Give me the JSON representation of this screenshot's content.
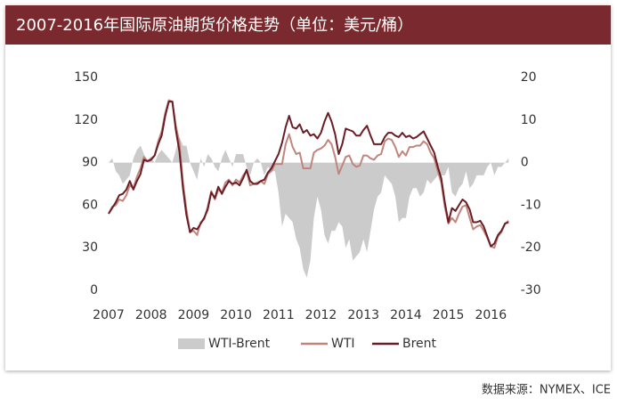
{
  "chart_data": {
    "type": "line",
    "title": "2007-2016年国际原油期货价格走势（单位：美元/桶）",
    "source": "数据来源：NYMEX、ICE",
    "x": [
      2007,
      2007.083,
      2007.167,
      2007.25,
      2007.333,
      2007.417,
      2007.5,
      2007.583,
      2007.667,
      2007.75,
      2007.833,
      2007.917,
      2008,
      2008.083,
      2008.167,
      2008.25,
      2008.333,
      2008.417,
      2008.5,
      2008.583,
      2008.667,
      2008.75,
      2008.833,
      2008.917,
      2009,
      2009.083,
      2009.167,
      2009.25,
      2009.333,
      2009.417,
      2009.5,
      2009.583,
      2009.667,
      2009.75,
      2009.833,
      2009.917,
      2010,
      2010.083,
      2010.167,
      2010.25,
      2010.333,
      2010.417,
      2010.5,
      2010.583,
      2010.667,
      2010.75,
      2010.833,
      2010.917,
      2011,
      2011.083,
      2011.167,
      2011.25,
      2011.333,
      2011.417,
      2011.5,
      2011.583,
      2011.667,
      2011.75,
      2011.833,
      2011.917,
      2012,
      2012.083,
      2012.167,
      2012.25,
      2012.333,
      2012.417,
      2012.5,
      2012.583,
      2012.667,
      2012.75,
      2012.833,
      2012.917,
      2013,
      2013.083,
      2013.167,
      2013.25,
      2013.333,
      2013.417,
      2013.5,
      2013.583,
      2013.667,
      2013.75,
      2013.833,
      2013.917,
      2014,
      2014.083,
      2014.167,
      2014.25,
      2014.333,
      2014.417,
      2014.5,
      2014.583,
      2014.667,
      2014.75,
      2014.833,
      2014.917,
      2015,
      2015.083,
      2015.167,
      2015.25,
      2015.333,
      2015.417,
      2015.5,
      2015.583,
      2015.667,
      2015.75,
      2015.833,
      2015.917,
      2016,
      2016.083,
      2016.167,
      2016.25,
      2016.333,
      2016.417
    ],
    "series": [
      {
        "name": "WTI-Brent",
        "color": "#cbcbcb",
        "axis": "y2",
        "kind": "area",
        "values": [
          0,
          1,
          -2,
          -3,
          -5,
          -4,
          -3,
          1,
          3,
          4,
          2,
          0,
          1,
          0,
          2,
          3,
          2,
          1,
          0,
          3,
          6,
          4,
          4,
          0,
          -2,
          -4,
          1,
          -1,
          2,
          1,
          -1,
          -2,
          1,
          3,
          1,
          -1,
          2,
          2,
          2,
          -1,
          -3,
          0,
          1,
          0,
          -3,
          -1,
          -2,
          -2,
          -7,
          -15,
          -12,
          -13,
          -14,
          -18,
          -20,
          -25,
          -27,
          -23,
          -13,
          -8,
          -11,
          -17,
          -19,
          -16,
          -16,
          -14,
          -15,
          -20,
          -18,
          -23,
          -22,
          -21,
          -18,
          -21,
          -16,
          -11,
          -8,
          -7,
          -3,
          -4,
          -5,
          -8,
          -14,
          -13,
          -13,
          -8,
          -6,
          -6,
          -8,
          -7,
          -4,
          -5,
          -4,
          -3,
          -3,
          -3,
          -1,
          -7,
          -8,
          -6,
          -5,
          -2,
          -6,
          -5,
          -3,
          -3,
          -3,
          -1,
          0,
          -3,
          -1,
          -1,
          0,
          1
        ]
      },
      {
        "name": "WTI",
        "color": "#c0857c",
        "values": [
          54,
          59,
          60,
          64,
          63,
          67,
          74,
          72,
          80,
          86,
          94,
          91,
          93,
          95,
          105,
          112,
          125,
          134,
          133,
          116,
          104,
          76,
          57,
          41,
          42,
          39,
          48,
          50,
          59,
          70,
          64,
          71,
          69,
          76,
          78,
          74,
          78,
          76,
          81,
          84,
          74,
          75,
          76,
          77,
          75,
          82,
          84,
          89,
          89,
          89,
          103,
          110,
          101,
          96,
          97,
          86,
          86,
          86,
          97,
          99,
          100,
          102,
          106,
          103,
          94,
          82,
          88,
          94,
          95,
          89,
          87,
          88,
          95,
          95,
          93,
          92,
          95,
          96,
          105,
          107,
          106,
          101,
          94,
          98,
          95,
          101,
          101,
          102,
          102,
          105,
          103,
          97,
          93,
          84,
          76,
          59,
          47,
          51,
          48,
          54,
          59,
          60,
          51,
          43,
          45,
          46,
          42,
          37,
          31,
          30,
          38,
          41,
          47,
          49
        ]
      },
      {
        "name": "Brent",
        "color": "#6b1c24",
        "values": [
          54,
          58,
          62,
          67,
          68,
          71,
          77,
          71,
          77,
          82,
          92,
          91,
          92,
          95,
          103,
          109,
          123,
          133,
          133,
          113,
          98,
          72,
          53,
          41,
          44,
          43,
          47,
          51,
          57,
          69,
          65,
          73,
          68,
          73,
          77,
          75,
          76,
          74,
          79,
          85,
          77,
          75,
          75,
          77,
          78,
          83,
          86,
          91,
          96,
          104,
          115,
          123,
          115,
          114,
          117,
          111,
          113,
          109,
          110,
          107,
          111,
          119,
          125,
          119,
          110,
          96,
          103,
          114,
          113,
          112,
          109,
          109,
          113,
          116,
          109,
          103,
          103,
          103,
          108,
          111,
          111,
          109,
          108,
          111,
          108,
          109,
          107,
          108,
          110,
          112,
          107,
          102,
          97,
          87,
          79,
          62,
          48,
          58,
          56,
          60,
          64,
          62,
          57,
          48,
          48,
          49,
          45,
          38,
          31,
          33,
          39,
          42,
          47,
          48
        ]
      }
    ],
    "xlim": [
      2007,
      2016.45
    ],
    "xticks": [
      2007,
      2008,
      2009,
      2010,
      2011,
      2012,
      2013,
      2014,
      2015,
      2016
    ],
    "ylim": [
      0,
      150
    ],
    "yticks": [
      0,
      30,
      60,
      90,
      120,
      150
    ],
    "y2lim": [
      -30,
      20
    ],
    "y2ticks": [
      -30,
      -20,
      -10,
      0,
      10,
      20
    ]
  }
}
